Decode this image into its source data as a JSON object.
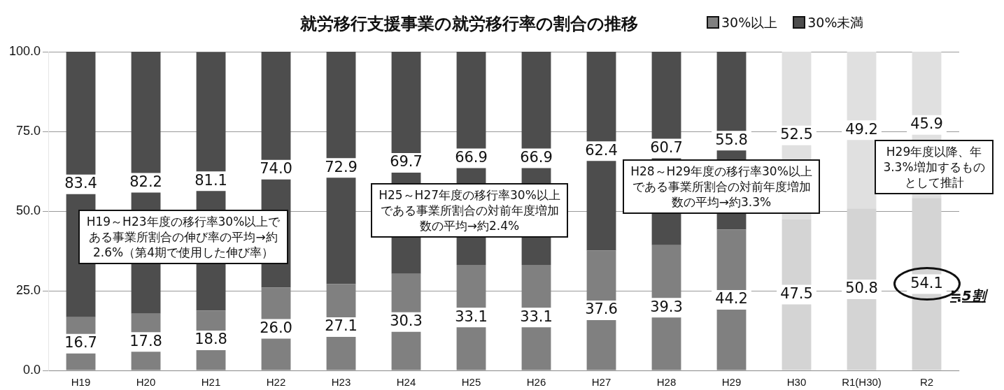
{
  "chart_data": {
    "type": "bar",
    "title": "就労移行支援事業の就労移行率の割合の推移",
    "stacked": true,
    "categories": [
      "H19",
      "H20",
      "H21",
      "H22",
      "H23",
      "H24",
      "H25",
      "H26",
      "H27",
      "H28",
      "H29",
      "H30",
      "R1(H30)",
      "R2"
    ],
    "series": [
      {
        "name": "30%以上",
        "color": "#808080",
        "colors": [
          "#808080",
          "#808080",
          "#808080",
          "#808080",
          "#808080",
          "#808080",
          "#808080",
          "#808080",
          "#808080",
          "#808080",
          "#808080",
          "#d4d4d4",
          "#d4d4d4",
          "#d4d4d4"
        ],
        "values": [
          16.7,
          17.8,
          18.8,
          26.0,
          27.1,
          30.3,
          33.1,
          33.1,
          37.6,
          39.3,
          44.2,
          47.5,
          50.8,
          54.1
        ],
        "value_labels": [
          "16.7",
          "17.8",
          "18.8",
          "26.0",
          "27.1",
          "30.3",
          "33.1",
          "33.1",
          "37.6",
          "39.3",
          "44.2",
          "47.5",
          "50.8",
          "54.1"
        ]
      },
      {
        "name": "30%未満",
        "color": "#4d4d4d",
        "colors": [
          "#4d4d4d",
          "#4d4d4d",
          "#4d4d4d",
          "#4d4d4d",
          "#4d4d4d",
          "#4d4d4d",
          "#4d4d4d",
          "#4d4d4d",
          "#4d4d4d",
          "#4d4d4d",
          "#4d4d4d",
          "#e0e0e0",
          "#e0e0e0",
          "#e0e0e0"
        ],
        "values": [
          83.4,
          82.2,
          81.1,
          74.0,
          72.9,
          69.7,
          66.9,
          66.9,
          62.4,
          60.7,
          55.8,
          52.5,
          49.2,
          45.9
        ],
        "value_labels": [
          "83.4",
          "82.2",
          "81.1",
          "74.0",
          "72.9",
          "69.7",
          "66.9",
          "66.9",
          "62.4",
          "60.7",
          "55.8",
          "52.5",
          "49.2",
          "45.9"
        ]
      }
    ],
    "ylim": [
      0,
      100
    ],
    "yticks": [
      {
        "value": 0,
        "label": "0.0"
      },
      {
        "value": 25,
        "label": "25.0"
      },
      {
        "value": 50,
        "label": "50.0"
      },
      {
        "value": 75,
        "label": "75.0"
      },
      {
        "value": 100,
        "label": "100.0"
      }
    ],
    "grid": "y",
    "legend": "top right",
    "annotations": [
      "H19～H23年度の移行率30%以上である事業所割合の伸び率の平均→約2.6%（第4期で使用した伸び率）",
      "H25～H27年度の移行率30%以上である事業所割合の対前年度増加数の平均→約2.4%",
      "H28～H29年度の移行率30%以上である事業所割合の対前年度増加数の平均→約3.3%",
      "H29年度以降、年3.3%増加するものとして推計",
      "≒5割"
    ]
  }
}
